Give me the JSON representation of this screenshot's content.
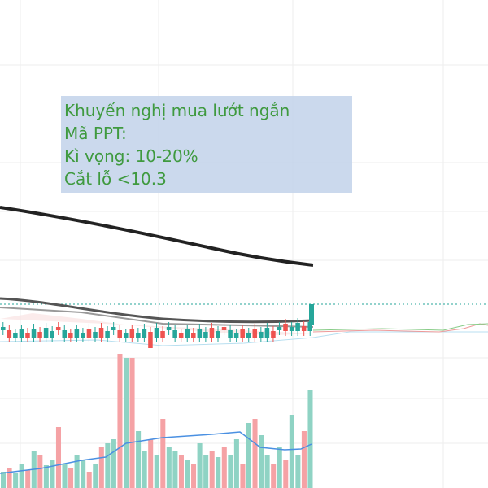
{
  "annotation": {
    "lines": [
      "Khuyến nghị mua lướt ngắn",
      "Mã PPT:",
      "Kì vọng: 10-20%",
      "Cắt lỗ <10.3"
    ]
  }
}
